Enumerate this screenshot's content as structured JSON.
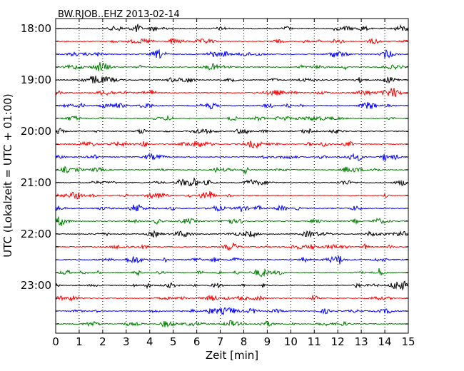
{
  "chart_data": {
    "type": "line",
    "chart_kind": "seismogram-dayplot",
    "title": "BW.RJOB..EHZ 2013-02-14",
    "xlabel": "Zeit  [min]",
    "ylabel": "UTC (Lokalzeit = UTC + 01:00)",
    "xlim": [
      0,
      15
    ],
    "x_ticks": [
      "0",
      "1",
      "2",
      "3",
      "4",
      "5",
      "6",
      "7",
      "8",
      "9",
      "10",
      "11",
      "12",
      "13",
      "14",
      "15"
    ],
    "y_tick_labels": [
      "18:00",
      "19:00",
      "20:00",
      "21:00",
      "22:00",
      "23:00"
    ],
    "trace_interval_min": 15,
    "trace_count": 24,
    "trace_colors": [
      "#000000",
      "#ff0000",
      "#0000ff",
      "#007f00"
    ],
    "vertical_grid": "dotted"
  }
}
